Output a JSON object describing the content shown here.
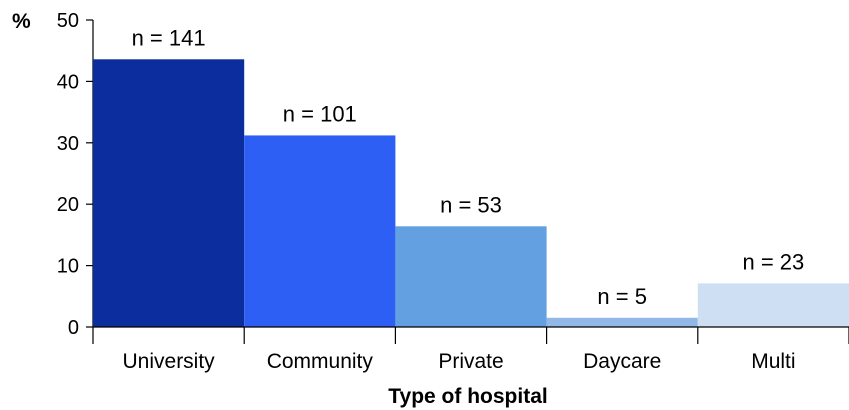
{
  "chart_data": {
    "type": "bar",
    "categories": [
      "University",
      "Community",
      "Private",
      "Daycare",
      "Multi"
    ],
    "values": [
      43.6,
      31.2,
      16.4,
      1.5,
      7.1
    ],
    "data_labels": [
      "n = 141",
      "n = 101",
      "n = 53",
      "n = 5",
      "n = 23"
    ],
    "colors": [
      "#0c2d9e",
      "#2e5ff5",
      "#62a0e2",
      "#91b8e6",
      "#cedff4"
    ],
    "title": "",
    "xlabel": "Type of hospital",
    "ylabel": "%",
    "ylim": [
      0,
      50
    ],
    "yticks": [
      "0",
      "10",
      "20",
      "30",
      "40",
      "50"
    ],
    "grid": false,
    "legend": "none"
  }
}
